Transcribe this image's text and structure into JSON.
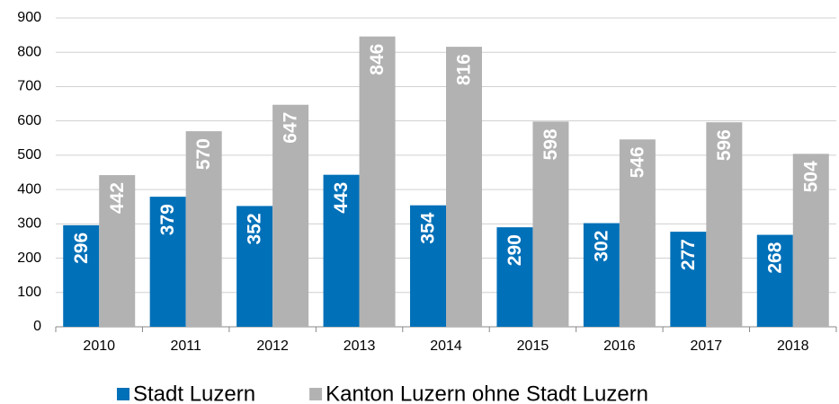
{
  "chart_data": {
    "type": "bar",
    "categories": [
      "2010",
      "2011",
      "2012",
      "2013",
      "2014",
      "2015",
      "2016",
      "2017",
      "2018"
    ],
    "series": [
      {
        "name": "Stadt Luzern",
        "color": "#0070b8",
        "values": [
          296,
          379,
          352,
          443,
          354,
          290,
          302,
          277,
          268
        ]
      },
      {
        "name": "Kanton Luzern ohne Stadt Luzern",
        "color": "#b2b2b2",
        "values": [
          442,
          570,
          647,
          846,
          816,
          598,
          546,
          596,
          504
        ]
      }
    ],
    "ylim": [
      0,
      900
    ],
    "yticks": [
      0,
      100,
      200,
      300,
      400,
      500,
      600,
      700,
      800,
      900
    ],
    "grid": true
  }
}
